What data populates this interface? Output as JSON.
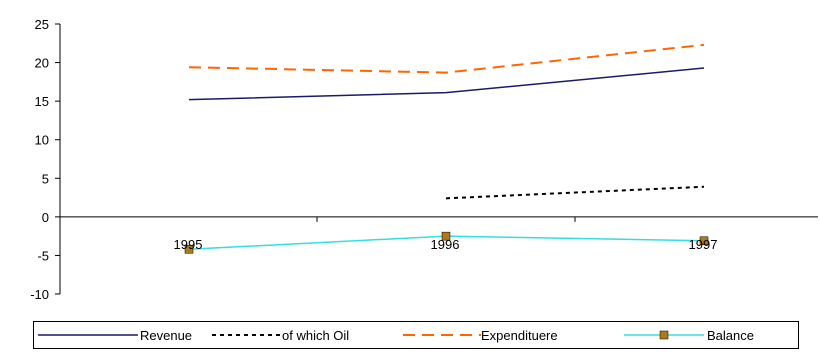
{
  "chart_data": {
    "type": "line",
    "title": "",
    "xlabel": "",
    "ylabel": "",
    "categories": [
      "1995",
      "1996",
      "1997"
    ],
    "ylim": [
      -10,
      25
    ],
    "yticks": [
      25,
      20,
      15,
      10,
      5,
      0,
      -5,
      -10
    ],
    "grid": false,
    "legend_position": "bottom",
    "series": [
      {
        "name": "Revenue",
        "values": [
          15.2,
          16.1,
          19.3
        ],
        "color": "#1a1a6e",
        "style": "solid"
      },
      {
        "name": "of which Oil",
        "values": [
          null,
          2.4,
          3.9
        ],
        "color": "#000000",
        "style": "dotted"
      },
      {
        "name": "Expendituere",
        "values": [
          19.4,
          18.7,
          22.3
        ],
        "color": "#ff6600",
        "style": "dashed"
      },
      {
        "name": "Balance",
        "values": [
          -4.2,
          -2.5,
          -3.1
        ],
        "color": "#33e0e0",
        "style": "solid-marker",
        "marker_color": "#b07818"
      }
    ]
  }
}
